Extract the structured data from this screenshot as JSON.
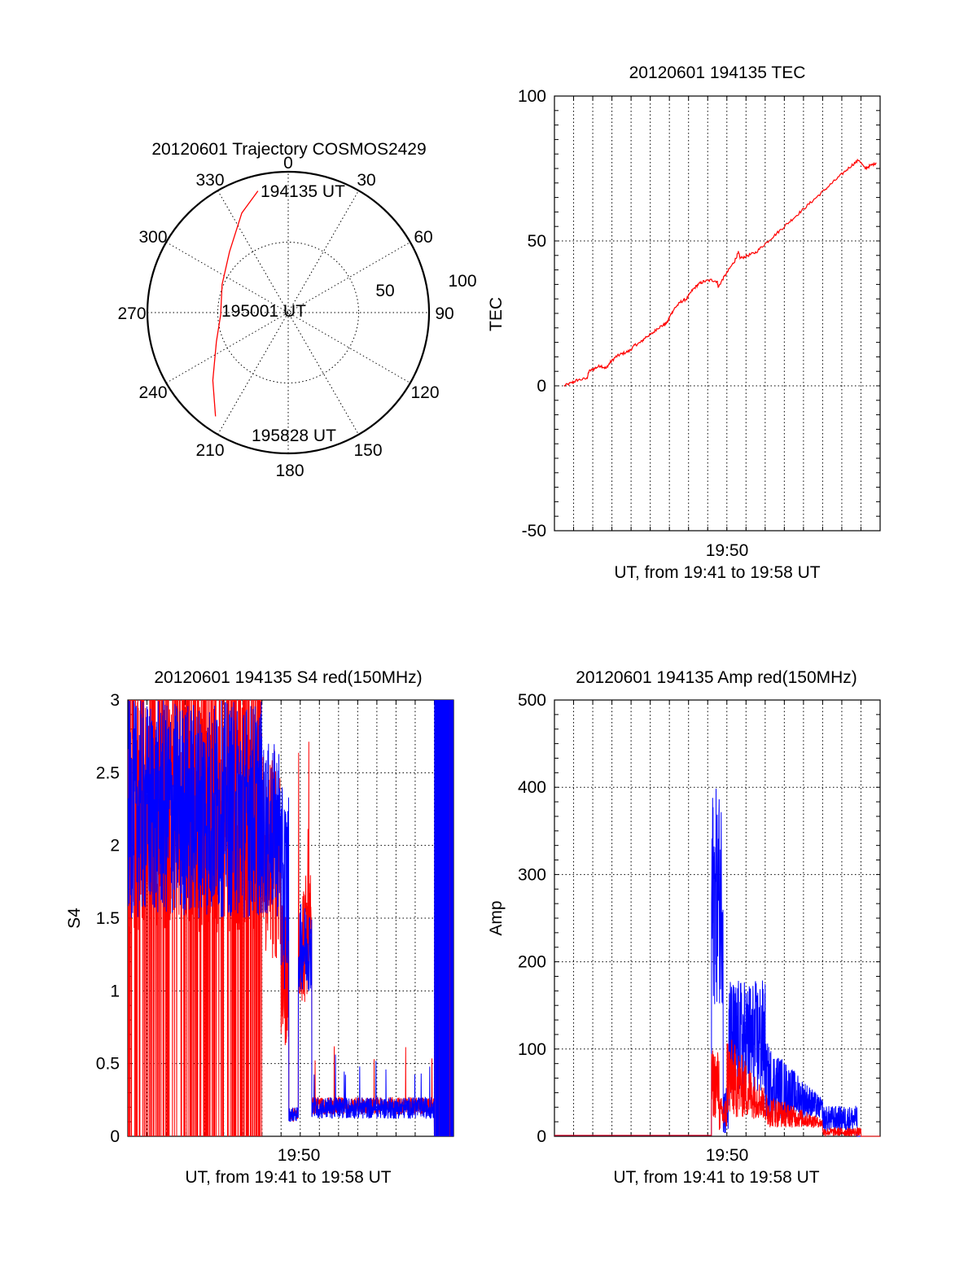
{
  "chart_data": [
    {
      "type": "polar",
      "title": "20120601 Trajectory COSMOS2429",
      "angle_labels": [
        "0",
        "30",
        "60",
        "90",
        "120",
        "150",
        "180",
        "210",
        "240",
        "270",
        "300",
        "330"
      ],
      "radial_labels": [
        "50",
        "100"
      ],
      "trajectory": {
        "color": "#ff0000",
        "points": [
          {
            "az": 346,
            "el": 11
          },
          {
            "az": 335,
            "el": 22
          },
          {
            "az": 316,
            "el": 40
          },
          {
            "az": 293,
            "el": 49
          },
          {
            "az": 268,
            "el": 52
          },
          {
            "az": 248,
            "el": 45
          },
          {
            "az": 228,
            "el": 28
          },
          {
            "az": 215,
            "el": 10
          }
        ]
      },
      "annotations": [
        {
          "text": "194135 UT",
          "az": 352,
          "el": 5
        },
        {
          "text": "195001 UT",
          "az": 268,
          "el": 56
        },
        {
          "text": "195828 UT",
          "az": 200,
          "el": 14
        }
      ]
    },
    {
      "type": "line",
      "title": "20120601 194135 TEC",
      "xlabel": "UT, from 19:41 to 19:58 UT",
      "ylabel": "TEC",
      "ylim": [
        -50,
        100
      ],
      "yticks": [
        "-50",
        "0",
        "50",
        "100"
      ],
      "xtick_label": "19:50",
      "series": [
        {
          "color": "#ff0000",
          "points": [
            [
              0,
              0
            ],
            [
              0.4,
              1
            ],
            [
              0.7,
              2
            ],
            [
              1.2,
              2.5
            ],
            [
              1.3,
              5
            ],
            [
              1.6,
              6
            ],
            [
              1.9,
              7
            ],
            [
              2.2,
              6
            ],
            [
              2.4,
              8
            ],
            [
              2.7,
              10
            ],
            [
              3.0,
              11
            ],
            [
              3.4,
              12
            ],
            [
              3.7,
              14
            ],
            [
              4.0,
              15
            ],
            [
              4.3,
              17
            ],
            [
              4.6,
              18
            ],
            [
              4.9,
              20
            ],
            [
              5.2,
              21
            ],
            [
              5.4,
              22
            ],
            [
              5.6,
              25
            ],
            [
              5.8,
              27
            ],
            [
              6.1,
              29
            ],
            [
              6.4,
              30
            ],
            [
              6.7,
              33
            ],
            [
              7.0,
              35
            ],
            [
              7.3,
              36
            ],
            [
              7.7,
              36.5
            ],
            [
              8.0,
              36
            ],
            [
              8.05,
              34
            ],
            [
              8.3,
              37
            ],
            [
              8.6,
              40
            ],
            [
              8.9,
              43
            ],
            [
              9.1,
              46
            ],
            [
              9.2,
              44
            ],
            [
              9.6,
              45
            ],
            [
              10.0,
              46
            ],
            [
              10.5,
              49
            ],
            [
              11.0,
              52
            ],
            [
              11.5,
              55
            ],
            [
              12.0,
              58
            ],
            [
              12.5,
              61
            ],
            [
              13.0,
              64
            ],
            [
              13.5,
              67
            ],
            [
              14.0,
              70
            ],
            [
              14.5,
              73
            ],
            [
              15.0,
              76
            ],
            [
              15.4,
              78
            ],
            [
              15.7,
              75
            ],
            [
              16.0,
              76
            ],
            [
              16.3,
              77
            ]
          ]
        }
      ]
    },
    {
      "type": "line",
      "title": "20120601 194135 S4 red(150MHz)",
      "xlabel": "UT, from 19:41 to 19:58 UT",
      "ylabel": "S4",
      "ylim": [
        0,
        3
      ],
      "yticks": [
        "0",
        "0.5",
        "1",
        "1.5",
        "2",
        "2.5",
        "3"
      ],
      "xtick_label": "19:50",
      "series": [
        {
          "name": "red",
          "color": "#ff0000",
          "description_values": "values saturating 0-3 from 19:41 to 19:48.5; 0.3-1.8 around 19:49; ~0.2 from 19:50.5 to 19:57.5; saturated after 19:57.5"
        },
        {
          "name": "blue",
          "color": "#0000ff",
          "description_values": "1.5-3 from 19:41 to 19:48.5; 0.1-0.2 at 19:49.5; 1.0-1.6 around 19:50.5; ~0.15 to 19:57.5; saturated after"
        }
      ]
    },
    {
      "type": "line",
      "title": "20120601 194135 Amp red(150MHz)",
      "xlabel": "UT, from 19:41 to 19:58 UT",
      "ylabel": "Amp",
      "ylim": [
        0,
        500
      ],
      "yticks": [
        "0",
        "100",
        "200",
        "300",
        "400",
        "500"
      ],
      "xtick_label": "19:50",
      "series": [
        {
          "name": "red",
          "color": "#ff0000"
        },
        {
          "name": "blue",
          "color": "#0000ff"
        }
      ]
    }
  ]
}
